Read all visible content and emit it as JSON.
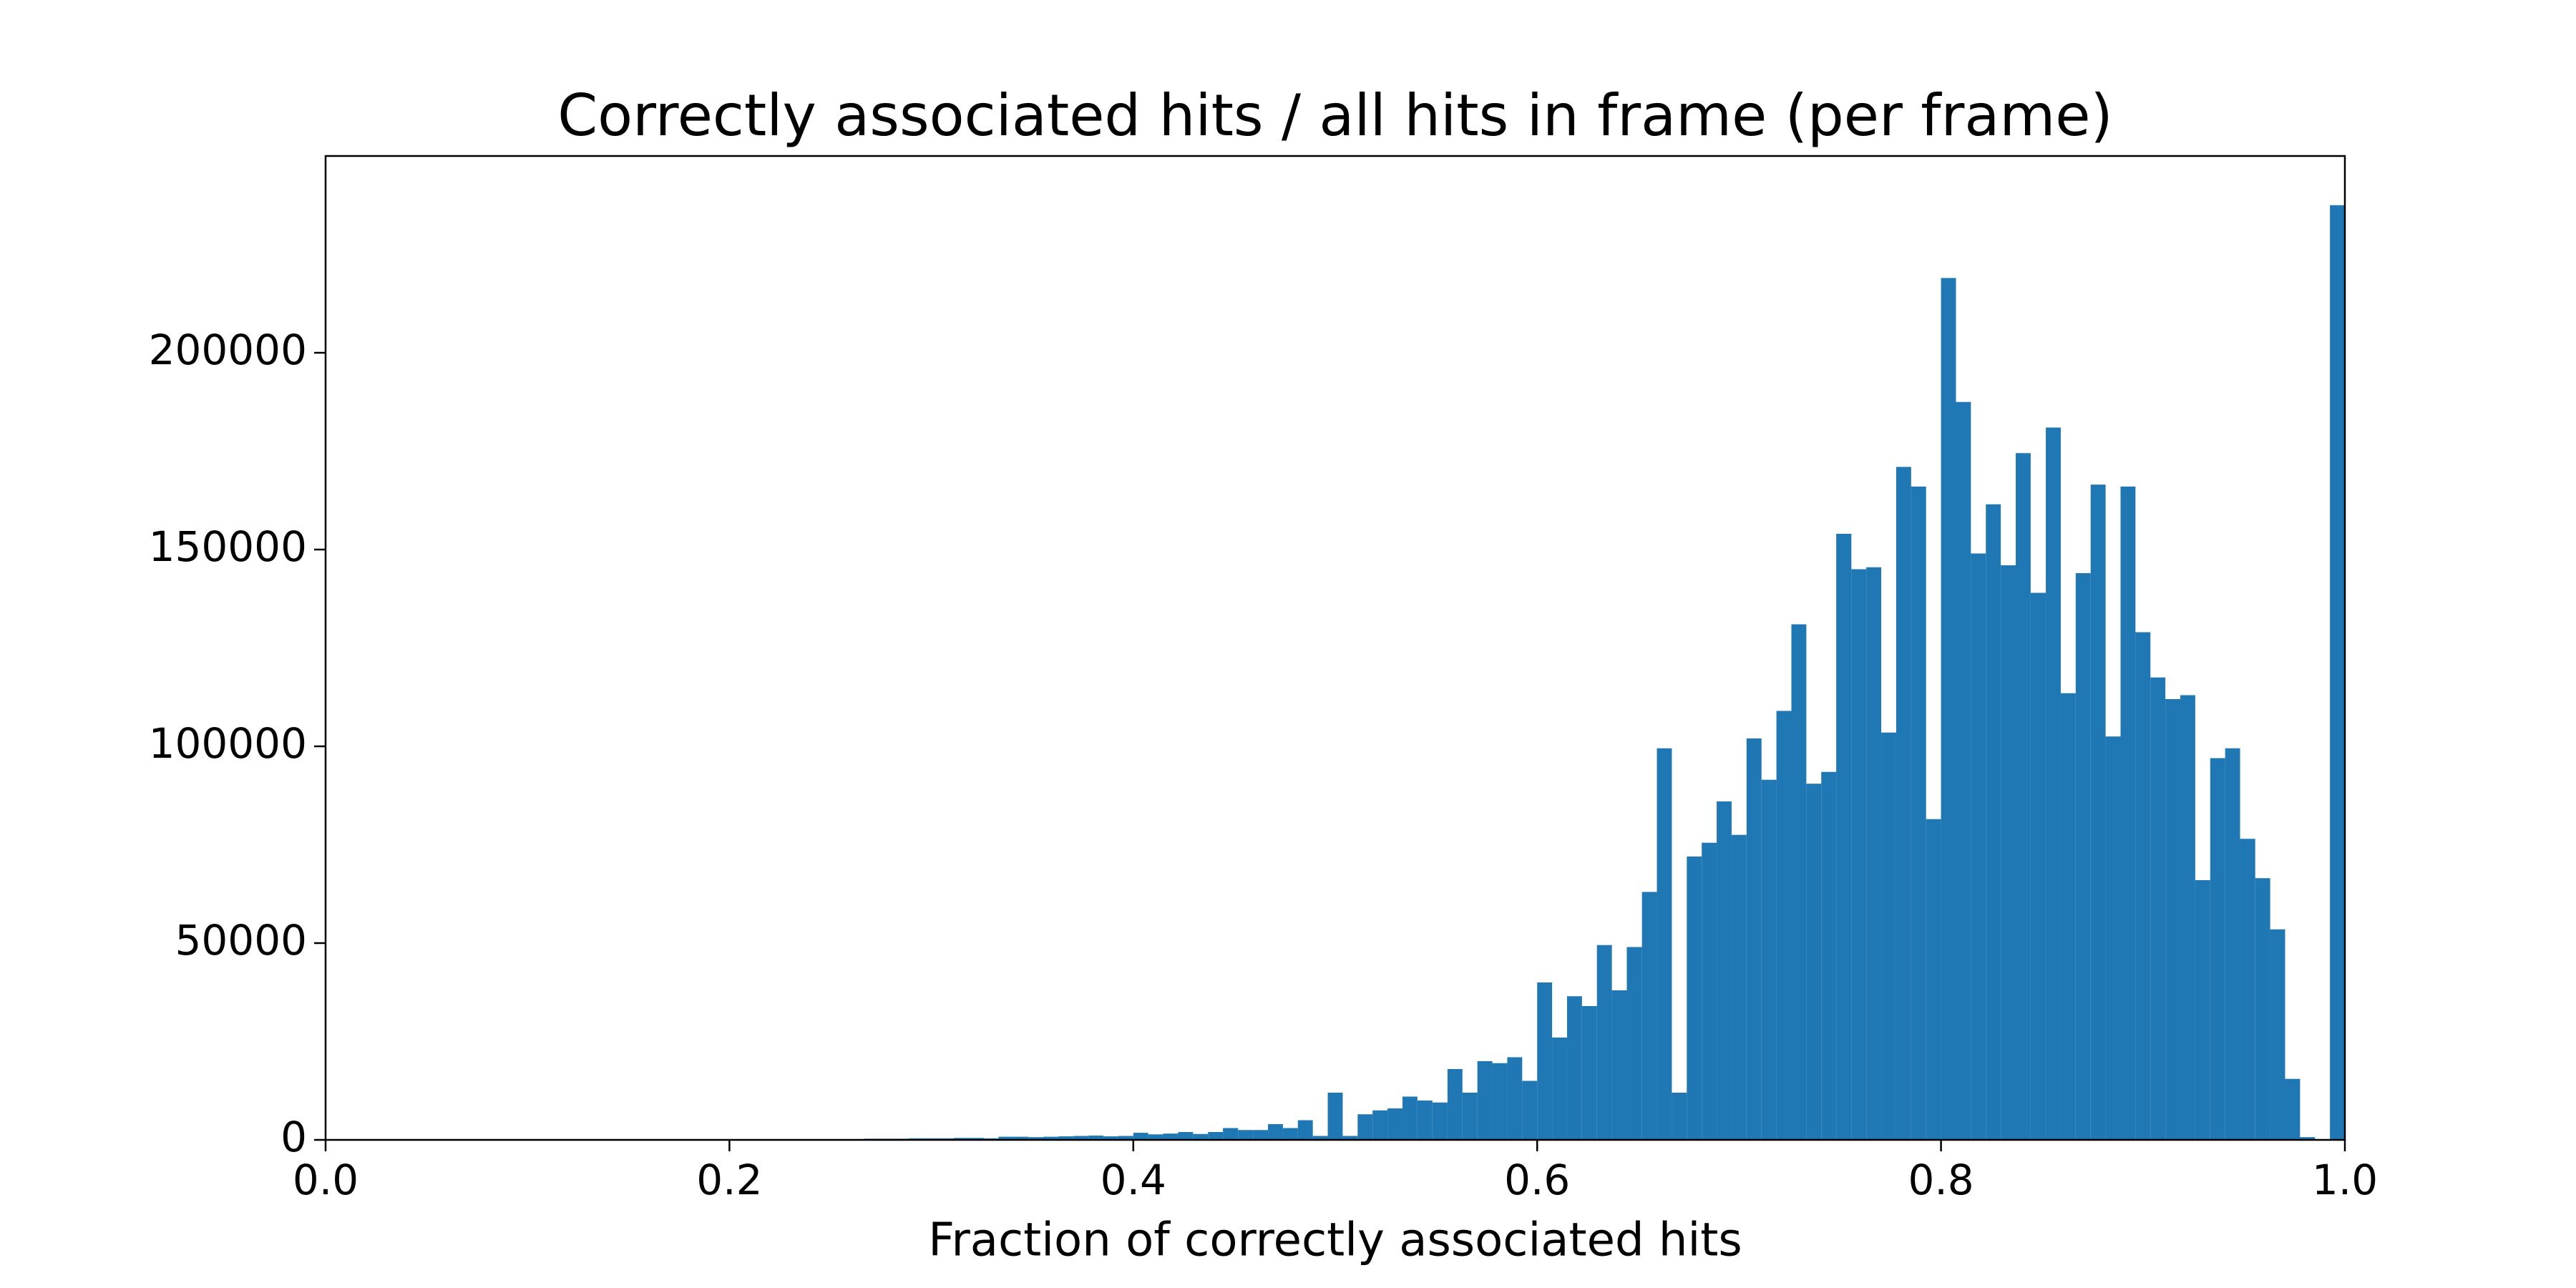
{
  "chart_data": {
    "type": "histogram",
    "title": "Correctly associated hits / all hits in frame (per frame)",
    "x_label": "Fraction of correctly associated hits",
    "color": "#1f77b4",
    "bins": [
      0,
      0.0074,
      0.0148,
      0.0222,
      0.0296,
      0.037,
      0.0444,
      0.0519,
      0.0593,
      0.0667,
      0.0741,
      0.0815,
      0.0889,
      0.0963,
      0.1037,
      0.1111,
      0.1185,
      0.1259,
      0.1333,
      0.1407,
      0.1481,
      0.1556,
      0.163,
      0.1704,
      0.1778,
      0.1852,
      0.1926,
      0.2,
      0.2074,
      0.2148,
      0.2222,
      0.2296,
      0.237,
      0.2444,
      0.2519,
      0.2593,
      0.2667,
      0.2741,
      0.2815,
      0.2889,
      0.2963,
      0.3037,
      0.3111,
      0.3185,
      0.3259,
      0.3333,
      0.3407,
      0.3481,
      0.3556,
      0.363,
      0.3704,
      0.3778,
      0.3852,
      0.3926,
      0.4,
      0.4074,
      0.4148,
      0.4222,
      0.4296,
      0.437,
      0.4444,
      0.4519,
      0.4593,
      0.4667,
      0.4741,
      0.4815,
      0.4889,
      0.4963,
      0.5037,
      0.5111,
      0.5185,
      0.5259,
      0.5333,
      0.5407,
      0.5481,
      0.5556,
      0.563,
      0.5704,
      0.5778,
      0.5852,
      0.5926,
      0.6,
      0.6074,
      0.6148,
      0.6222,
      0.6296,
      0.637,
      0.6444,
      0.6519,
      0.6593,
      0.6667,
      0.6741,
      0.6815,
      0.6889,
      0.6963,
      0.7037,
      0.7111,
      0.7185,
      0.7259,
      0.7333,
      0.7407,
      0.7481,
      0.7556,
      0.763,
      0.7704,
      0.7778,
      0.7852,
      0.7926,
      0.8,
      0.8074,
      0.8148,
      0.8222,
      0.8296,
      0.837,
      0.8444,
      0.8519,
      0.8593,
      0.8667,
      0.8741,
      0.8815,
      0.8889,
      0.8963,
      0.9037,
      0.9111,
      0.9185,
      0.9259,
      0.9333,
      0.9407,
      0.9481,
      0.9556,
      0.963,
      0.9704,
      0.9778,
      0.9852,
      0.9926,
      1.0
    ],
    "values": [
      0,
      0,
      0,
      0,
      0,
      0,
      0,
      0,
      0,
      0,
      0,
      0,
      0,
      0,
      0,
      0,
      0,
      0,
      0,
      0,
      0,
      0,
      0,
      0,
      0,
      0,
      0,
      0,
      0,
      0,
      0,
      0,
      0,
      0,
      0,
      0,
      300,
      300,
      300,
      400,
      400,
      400,
      500,
      500,
      400,
      800,
      800,
      700,
      800,
      900,
      1000,
      1100,
      900,
      1000,
      1800,
      1400,
      1600,
      2000,
      1500,
      2000,
      3000,
      2500,
      2500,
      4000,
      3000,
      5000,
      1000,
      12000,
      1000,
      6500,
      7500,
      8000,
      11000,
      10000,
      9500,
      18000,
      12000,
      20000,
      19500,
      21000,
      15000,
      40000,
      26000,
      36500,
      34000,
      49500,
      38000,
      49000,
      63000,
      99500,
      12000,
      72000,
      75500,
      86000,
      77500,
      102000,
      91500,
      109000,
      131000,
      90500,
      93500,
      154000,
      145000,
      145500,
      103500,
      171000,
      166000,
      81500,
      219000,
      187500,
      149000,
      161500,
      146000,
      174500,
      139000,
      181000,
      113500,
      144000,
      166500,
      102500,
      166000,
      129000,
      117500,
      112000,
      113000,
      66000,
      97000,
      99500,
      76500,
      66500,
      53500,
      15500,
      700,
      100,
      237500
    ],
    "xlim": [
      0,
      1
    ],
    "xticks": [
      {
        "value": 0,
        "label": "0.0"
      },
      0.2,
      0.4,
      0.6,
      0.8,
      {
        "value": 1,
        "label": "1.0"
      }
    ],
    "ylim": [
      0,
      250000
    ],
    "yticks": [
      0,
      50000,
      100000,
      150000,
      200000
    ]
  }
}
